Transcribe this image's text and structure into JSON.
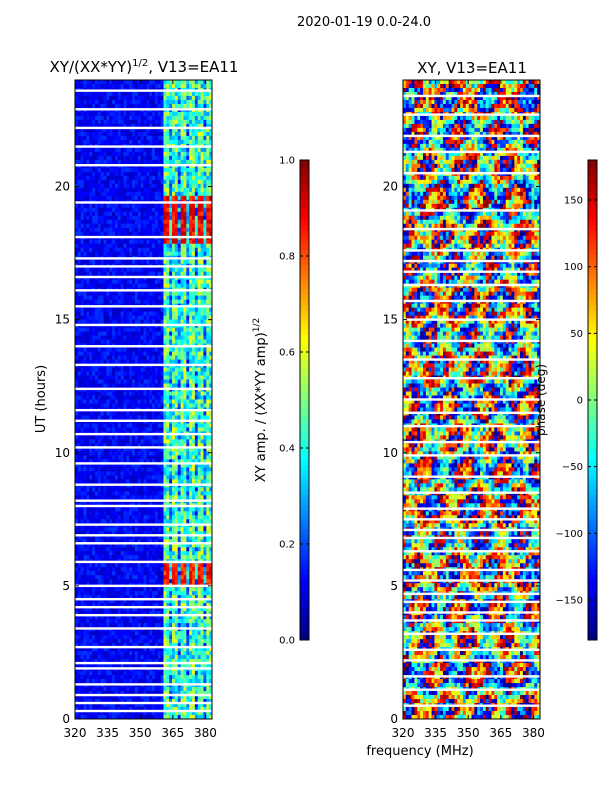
{
  "suptitle": "2020-01-19 0.0-24.0",
  "xlabel_shared": "frequency (MHz)",
  "colors": {
    "text": "#000000",
    "background": "#ffffff",
    "gap": "#ffffff",
    "jet": [
      "#00007f",
      "#0000ff",
      "#007fff",
      "#00ffff",
      "#7fff7f",
      "#ffff00",
      "#ff7f00",
      "#ff0000",
      "#7f0000"
    ]
  },
  "chart_data": [
    {
      "type": "heatmap",
      "title_main": "XY/(XX*YY)",
      "title_exp": "1/2",
      "title_tail": ", V13=EA11",
      "xlabel": "",
      "ylabel": "UT (hours)",
      "xlim": [
        320,
        383
      ],
      "ylim": [
        0,
        24
      ],
      "xticks": [
        320,
        335,
        350,
        365,
        380
      ],
      "yticks": [
        0,
        5,
        10,
        15,
        20
      ],
      "colorbar": {
        "label_main": "XY amp. / (XX*YY amp)",
        "label_exp": "1/2",
        "range": [
          0.0,
          1.0
        ],
        "ticks": [
          0.0,
          0.2,
          0.4,
          0.6,
          0.8,
          1.0
        ],
        "tick_labels": [
          "0.0",
          "0.2",
          "0.4",
          "0.6",
          "0.8",
          "1.0"
        ]
      },
      "background_value": 0.12,
      "bright_channel_range_mhz": [
        361,
        383
      ],
      "bright_value": 0.45,
      "hot_spots": [
        {
          "ut_range": [
            17.9,
            19.6
          ],
          "value": 0.88
        },
        {
          "ut_range": [
            4.9,
            5.8
          ],
          "value": 0.85
        }
      ],
      "flagged_gap_ut": [
        23.6,
        22.9,
        22.2,
        21.5,
        20.8,
        19.4,
        18.1,
        17.3,
        17.0,
        16.6,
        16.1,
        15.5,
        14.8,
        14.0,
        13.3,
        12.4,
        11.6,
        11.2,
        10.7,
        10.2,
        9.6,
        8.8,
        8.2,
        8.0,
        7.3,
        6.9,
        6.6,
        5.9,
        5.0,
        4.5,
        4.2,
        3.9,
        3.4,
        2.7,
        2.1,
        1.9,
        1.3,
        0.9,
        0.6,
        0.3
      ]
    },
    {
      "type": "heatmap",
      "title": "XY, V13=EA11",
      "xlabel": "frequency (MHz)",
      "ylabel": "",
      "xlim": [
        320,
        383
      ],
      "ylim": [
        0,
        24
      ],
      "xticks": [
        320,
        335,
        350,
        365,
        380
      ],
      "yticks": [
        0,
        5,
        10,
        15,
        20
      ],
      "colorbar": {
        "label": "phase (deg)",
        "range": [
          -180,
          180
        ],
        "ticks": [
          -150,
          -100,
          -50,
          0,
          50,
          100,
          150
        ],
        "tick_labels": [
          "−150",
          "−100",
          "−50",
          "0",
          "50",
          "100",
          "150"
        ]
      },
      "value_range_deg": [
        -180,
        180
      ],
      "flagged_gap_ut": [
        23.4,
        22.7,
        21.9,
        21.3,
        20.5,
        19.1,
        18.4,
        17.6,
        17.2,
        16.8,
        16.3,
        15.7,
        15.0,
        14.2,
        13.5,
        12.8,
        12.0,
        11.5,
        11.0,
        10.4,
        9.9,
        9.1,
        8.5,
        7.9,
        7.5,
        7.1,
        6.8,
        6.3,
        5.6,
        5.2,
        4.7,
        4.4,
        4.0,
        3.7,
        3.2,
        2.6,
        2.2,
        1.6,
        1.1,
        0.5
      ]
    }
  ]
}
